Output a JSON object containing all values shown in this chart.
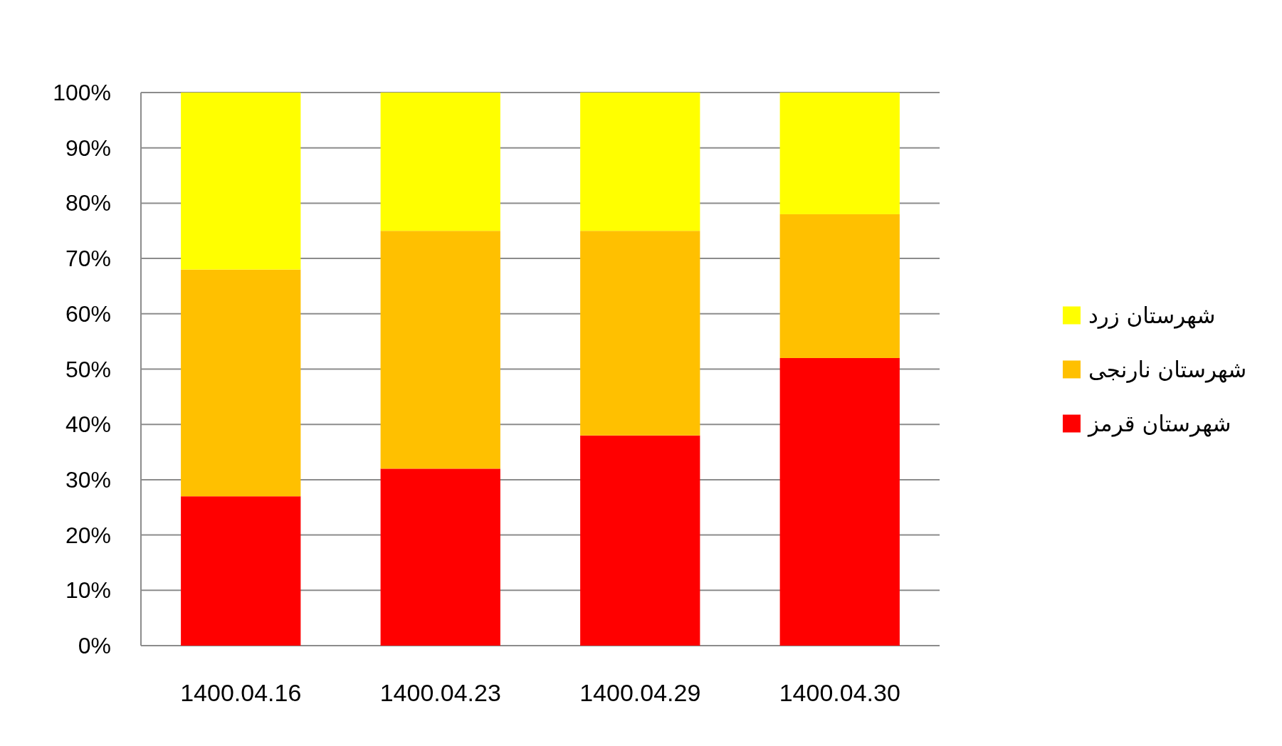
{
  "chart_data": {
    "type": "bar",
    "stacked": true,
    "categories": [
      "1400.04.16",
      "1400.04.23",
      "1400.04.29",
      "1400.04.30"
    ],
    "series": [
      {
        "name": "شهرستان قرمز",
        "color": "#ff0000",
        "values": [
          27,
          32,
          38,
          52
        ]
      },
      {
        "name": "شهرستان نارنجی",
        "color": "#ffc000",
        "values": [
          41,
          43,
          37,
          26
        ]
      },
      {
        "name": "شهرستان زرد",
        "color": "#ffff00",
        "values": [
          32,
          25,
          25,
          22
        ]
      }
    ],
    "ylim": [
      0,
      100
    ],
    "yticks": [
      {
        "value": 0,
        "label": "0%"
      },
      {
        "value": 10,
        "label": "10%"
      },
      {
        "value": 20,
        "label": "20%"
      },
      {
        "value": 30,
        "label": "30%"
      },
      {
        "value": 40,
        "label": "40%"
      },
      {
        "value": 50,
        "label": "50%"
      },
      {
        "value": 60,
        "label": "60%"
      },
      {
        "value": 70,
        "label": "70%"
      },
      {
        "value": 80,
        "label": "80%"
      },
      {
        "value": 90,
        "label": "90%"
      },
      {
        "value": 100,
        "label": "100%"
      }
    ],
    "grid": "y",
    "legend": "right"
  }
}
